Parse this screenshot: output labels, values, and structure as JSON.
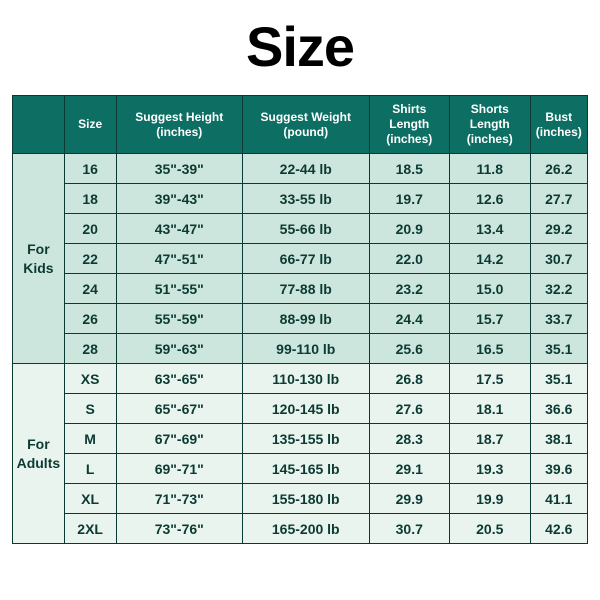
{
  "title": "Size",
  "table": {
    "columns": [
      {
        "label": "",
        "sub": ""
      },
      {
        "label": "Size",
        "sub": ""
      },
      {
        "label": "Suggest Height",
        "sub": "(inches)"
      },
      {
        "label": "Suggest Weight",
        "sub": "(pound)"
      },
      {
        "label": "Shirts Length",
        "sub": "(inches)"
      },
      {
        "label": "Shorts Length",
        "sub": "(inches)"
      },
      {
        "label": "Bust",
        "sub": "(inches)"
      }
    ],
    "groups": [
      {
        "label_line1": "For",
        "label_line2": "Kids",
        "row_class": "kids-row",
        "rows": [
          {
            "size": "16",
            "height": "35\"-39\"",
            "weight": "22-44 lb",
            "shirts": "18.5",
            "shorts": "11.8",
            "bust": "26.2"
          },
          {
            "size": "18",
            "height": "39\"-43\"",
            "weight": "33-55 lb",
            "shirts": "19.7",
            "shorts": "12.6",
            "bust": "27.7"
          },
          {
            "size": "20",
            "height": "43\"-47\"",
            "weight": "55-66 lb",
            "shirts": "20.9",
            "shorts": "13.4",
            "bust": "29.2"
          },
          {
            "size": "22",
            "height": "47\"-51\"",
            "weight": "66-77 lb",
            "shirts": "22.0",
            "shorts": "14.2",
            "bust": "30.7"
          },
          {
            "size": "24",
            "height": "51\"-55\"",
            "weight": "77-88 lb",
            "shirts": "23.2",
            "shorts": "15.0",
            "bust": "32.2"
          },
          {
            "size": "26",
            "height": "55\"-59\"",
            "weight": "88-99 lb",
            "shirts": "24.4",
            "shorts": "15.7",
            "bust": "33.7"
          },
          {
            "size": "28",
            "height": "59\"-63\"",
            "weight": "99-110 lb",
            "shirts": "25.6",
            "shorts": "16.5",
            "bust": "35.1"
          }
        ]
      },
      {
        "label_line1": "For",
        "label_line2": "Adults",
        "row_class": "adults-row",
        "rows": [
          {
            "size": "XS",
            "height": "63\"-65\"",
            "weight": "110-130 lb",
            "shirts": "26.8",
            "shorts": "17.5",
            "bust": "35.1"
          },
          {
            "size": "S",
            "height": "65\"-67\"",
            "weight": "120-145 lb",
            "shirts": "27.6",
            "shorts": "18.1",
            "bust": "36.6"
          },
          {
            "size": "M",
            "height": "67\"-69\"",
            "weight": "135-155 lb",
            "shirts": "28.3",
            "shorts": "18.7",
            "bust": "38.1"
          },
          {
            "size": "L",
            "height": "69\"-71\"",
            "weight": "145-165 lb",
            "shirts": "29.1",
            "shorts": "19.3",
            "bust": "39.6"
          },
          {
            "size": "XL",
            "height": "71\"-73\"",
            "weight": "155-180 lb",
            "shirts": "29.9",
            "shorts": "19.9",
            "bust": "41.1"
          },
          {
            "size": "2XL",
            "height": "73\"-76\"",
            "weight": "165-200 lb",
            "shirts": "30.7",
            "shorts": "20.5",
            "bust": "42.6"
          }
        ]
      }
    ]
  },
  "style": {
    "header_bg": "#0d6f63",
    "header_text": "#ffffff",
    "border_color": "#0b3a32",
    "kids_bg": "#cde6dd",
    "adults_bg": "#e9f4ef",
    "text_color": "#0b3a32",
    "title_color": "#000000",
    "title_fontsize": 56,
    "cell_fontsize": 14,
    "header_fontsize": 12
  }
}
